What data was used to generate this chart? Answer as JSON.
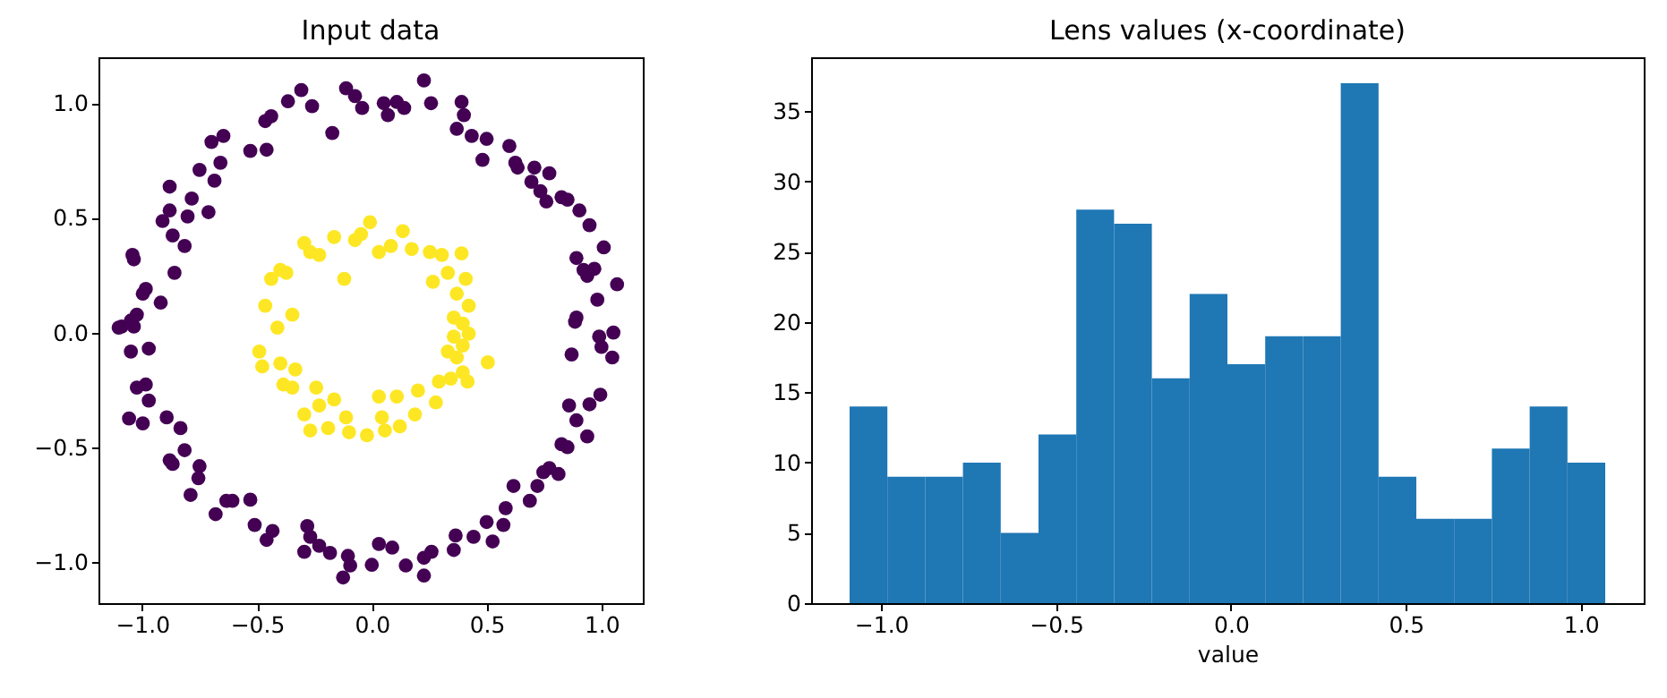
{
  "chart_data": [
    {
      "type": "scatter",
      "title": "Input data",
      "marker": "circle",
      "xlim": [
        -1.19,
        1.18
      ],
      "ylim": [
        -1.18,
        1.2
      ],
      "xticks": [
        {
          "value": -1,
          "label": "−1.0"
        },
        {
          "value": -0.5,
          "label": "−0.5"
        },
        {
          "value": 0,
          "label": "0.0"
        },
        {
          "value": 0.5,
          "label": "0.5"
        },
        {
          "value": 1,
          "label": "1.0"
        }
      ],
      "yticks": [
        {
          "value": -1,
          "label": "−1.0"
        },
        {
          "value": -0.5,
          "label": "−0.5"
        },
        {
          "value": 0,
          "label": "0.0"
        },
        {
          "value": 0.5,
          "label": "0.5"
        },
        {
          "value": 1,
          "label": "1.0"
        }
      ],
      "series": [
        {
          "color": "#440154",
          "x": [
            -1.089,
            -1.049,
            -1.023,
            -0.997,
            -0.984,
            -0.919,
            -1.042,
            -1.036,
            -0.859,
            -0.911,
            -0.88,
            -0.867,
            -0.815,
            -0.88,
            -0.802,
            -0.784,
            -0.711,
            -0.75,
            -0.698,
            -0.659,
            -0.685,
            -0.646,
            -0.529,
            -0.458,
            -0.464,
            -0.438,
            -0.365,
            -0.307,
            -0.26,
            -0.172,
            -0.112,
            -0.073,
            -0.042,
            0.052,
            0.07,
            0.109,
            0.141,
            0.227,
            0.258,
            0.391,
            0.401,
            0.37,
            0.435,
            0.5,
            0.482,
            0.599,
            0.625,
            0.635,
            0.708,
            0.773,
            0.695,
            0.734,
            0.76,
            0.826,
            0.852,
            0.904,
            0.948,
            0.891,
            0.922,
            0.938,
            0.969,
            1.01,
            1.068,
            0.982,
            0.891,
            -1.102,
            -1.036,
            -1.049,
            -0.971,
            -1.023,
            -0.984,
            -0.971,
            -1.057,
            -0.997,
            -0.893,
            -0.833,
            -0.815,
            -0.88,
            -0.867,
            -0.75,
            -0.755,
            -0.789,
            -0.68,
            -0.633,
            -0.607,
            -0.529,
            -0.51,
            -0.458,
            -0.432,
            -0.281,
            -0.268,
            -0.294,
            -0.229,
            -0.182,
            -0.104,
            -0.094,
            -0.125,
            0.0,
            0.031,
            0.089,
            0.148,
            0.227,
            0.227,
            0.26,
            0.357,
            0.365,
            0.443,
            0.5,
            0.526,
            0.573,
            0.583,
            0.617,
            0.688,
            0.721,
            0.747,
            0.773,
            0.813,
            0.826,
            0.852,
            0.859,
            0.891,
            0.938,
            0.948,
            0.995,
            0.87,
            0.99,
            1.0,
            1.047,
            1.052,
            0.885
          ],
          "values": [
            0.026,
            0.052,
            0.078,
            0.169,
            0.19,
            0.13,
            0.338,
            0.319,
            0.26,
            0.486,
            0.532,
            0.423,
            0.377,
            0.636,
            0.506,
            0.584,
            0.525,
            0.709,
            0.831,
            0.74,
            0.662,
            0.857,
            0.792,
            0.797,
            0.922,
            0.943,
            1.008,
            1.057,
            0.987,
            0.87,
            1.065,
            1.031,
            0.979,
            1.0,
            0.948,
            1.005,
            0.979,
            1.099,
            1.0,
            1.005,
            0.948,
            0.888,
            0.857,
            0.844,
            0.753,
            0.813,
            0.74,
            0.719,
            0.719,
            0.694,
            0.657,
            0.616,
            0.571,
            0.59,
            0.579,
            0.532,
            0.468,
            0.325,
            0.273,
            0.247,
            0.278,
            0.371,
            0.21,
            0.143,
            0.065,
            0.021,
            0.026,
            -0.083,
            -0.07,
            -0.24,
            -0.227,
            -0.297,
            -0.375,
            -0.396,
            -0.37,
            -0.417,
            -0.513,
            -0.557,
            -0.573,
            -0.583,
            -0.635,
            -0.708,
            -0.792,
            -0.734,
            -0.734,
            -0.729,
            -0.839,
            -0.904,
            -0.865,
            -0.844,
            -0.891,
            -0.956,
            -0.93,
            -0.961,
            -0.974,
            -1.016,
            -1.068,
            -1.013,
            -0.922,
            -0.938,
            -1.016,
            -1.06,
            -0.982,
            -0.956,
            -0.948,
            -0.885,
            -0.891,
            -0.826,
            -0.911,
            -0.839,
            -0.766,
            -0.669,
            -0.734,
            -0.669,
            -0.609,
            -0.591,
            -0.617,
            -0.487,
            -0.5,
            -0.318,
            -0.383,
            -0.453,
            -0.313,
            -0.271,
            -0.096,
            -0.018,
            -0.063,
            -0.109,
            0.0,
            0.047
          ]
        },
        {
          "color": "#fde725",
          "x": [
            -0.464,
            -0.438,
            -0.398,
            -0.372,
            -0.346,
            -0.294,
            -0.268,
            -0.229,
            -0.164,
            -0.12,
            -0.073,
            -0.047,
            -0.008,
            0.031,
            0.083,
            0.135,
            0.174,
            0.253,
            0.266,
            0.305,
            0.331,
            0.391,
            0.37,
            0.409,
            0.422,
            0.357,
            0.396,
            -0.411,
            -0.49,
            -0.477,
            -0.398,
            -0.333,
            -0.385,
            -0.346,
            -0.294,
            -0.242,
            -0.229,
            -0.164,
            -0.112,
            -0.099,
            -0.268,
            -0.19,
            -0.021,
            0.057,
            0.044,
            0.031,
            0.109,
            0.122,
            0.188,
            0.201,
            0.279,
            0.292,
            0.344,
            0.396,
            0.417,
            0.505,
            0.37,
            0.357,
            0.422,
            0.396,
            0.331
          ],
          "values": [
            0.117,
            0.234,
            0.273,
            0.26,
            0.078,
            0.39,
            0.351,
            0.338,
            0.416,
            0.234,
            0.403,
            0.429,
            0.481,
            0.351,
            0.377,
            0.442,
            0.364,
            0.351,
            0.221,
            0.338,
            0.26,
            0.345,
            0.169,
            0.234,
            0.117,
            0.065,
            0.039,
            0.021,
            -0.083,
            -0.148,
            -0.135,
            -0.161,
            -0.227,
            -0.24,
            -0.357,
            -0.24,
            -0.318,
            -0.292,
            -0.37,
            -0.435,
            -0.427,
            -0.417,
            -0.448,
            -0.427,
            -0.37,
            -0.279,
            -0.279,
            -0.409,
            -0.357,
            -0.253,
            -0.305,
            -0.214,
            -0.201,
            -0.174,
            -0.214,
            -0.13,
            -0.109,
            -0.018,
            -0.005,
            -0.057,
            -0.083
          ]
        }
      ]
    },
    {
      "type": "histogram",
      "title": "Lens values (x-coordinate)",
      "xlabel": "value",
      "color": "#1f77b4",
      "bins": [
        -1.09,
        -0.982,
        -0.874,
        -0.766,
        -0.658,
        -0.55,
        -0.442,
        -0.334,
        -0.226,
        -0.118,
        -0.01,
        0.098,
        0.206,
        0.314,
        0.422,
        0.53,
        0.638,
        0.746,
        0.854,
        0.962,
        1.07
      ],
      "values": [
        14,
        9,
        9,
        10,
        5,
        12,
        28,
        27,
        16,
        22,
        17,
        19,
        19,
        37,
        9,
        6,
        6,
        11,
        14,
        10
      ],
      "xlim": [
        -1.2,
        1.18
      ],
      "ylim": [
        0,
        38.85
      ],
      "xticks": [
        {
          "value": -1,
          "label": "−1.0"
        },
        {
          "value": -0.5,
          "label": "−0.5"
        },
        {
          "value": 0,
          "label": "0.0"
        },
        {
          "value": 0.5,
          "label": "0.5"
        },
        {
          "value": 1,
          "label": "1.0"
        }
      ],
      "yticks": [
        0,
        5,
        10,
        15,
        20,
        25,
        30,
        35
      ]
    }
  ]
}
